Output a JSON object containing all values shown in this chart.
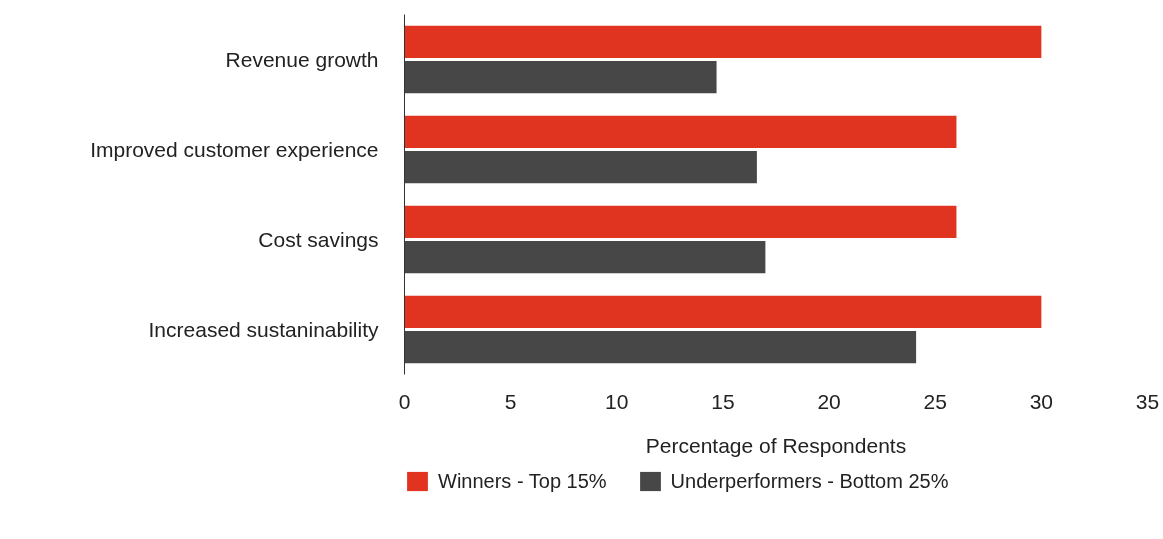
{
  "chart_data": {
    "type": "bar",
    "orientation": "horizontal",
    "xlabel": "Percentage of Respondents",
    "categories": [
      "Revenue growth",
      "Improved customer experience",
      "Cost savings",
      "Increased sustaninability"
    ],
    "series": [
      {
        "name": "Winners - Top 15%",
        "color": "#e03320",
        "values": [
          30,
          26,
          26,
          30
        ]
      },
      {
        "name": "Underperformers - Bottom 25%",
        "color": "#474747",
        "values": [
          14.7,
          16.6,
          17,
          24.1
        ]
      }
    ],
    "xlim": [
      0,
      35
    ],
    "xticks": [
      0,
      5,
      10,
      15,
      20,
      25,
      30,
      35
    ],
    "grid": false,
    "legend": "bottom"
  }
}
